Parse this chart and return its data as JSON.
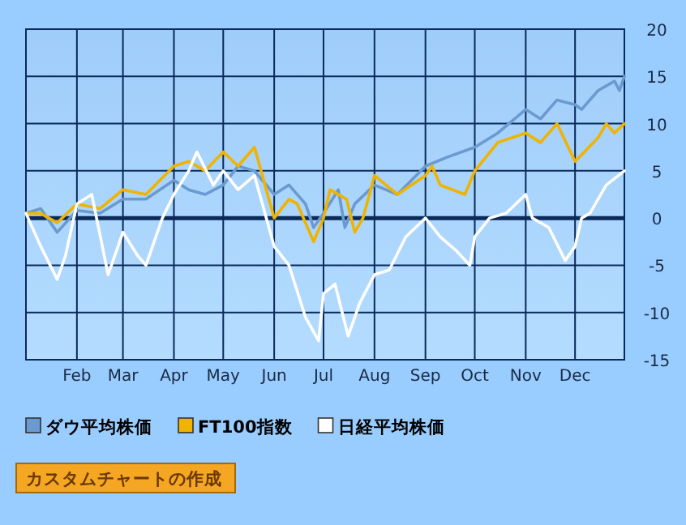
{
  "chart_data": {
    "type": "line",
    "xlim": [
      "--01-01",
      "--12-31"
    ],
    "xticks": [
      {
        "value": "--02-01",
        "label": "Feb"
      },
      {
        "value": "--03-01",
        "label": "Mar"
      },
      {
        "value": "--04-01",
        "label": "Apr"
      },
      {
        "value": "--05-01",
        "label": "May"
      },
      {
        "value": "--06-01",
        "label": "Jun"
      },
      {
        "value": "--07-01",
        "label": "Jul"
      },
      {
        "value": "--08-01",
        "label": "Aug"
      },
      {
        "value": "--09-01",
        "label": "Sep"
      },
      {
        "value": "--10-01",
        "label": "Oct"
      },
      {
        "value": "--11-01",
        "label": "Nov"
      },
      {
        "value": "--12-01",
        "label": "Dec"
      }
    ],
    "ylim": [
      -15,
      20
    ],
    "yticks": [
      -15,
      -10,
      -5,
      0,
      5,
      10,
      15,
      20
    ],
    "ref_lines": [
      {
        "axis": "y",
        "value": 0,
        "color": "#0a2a5a"
      }
    ],
    "grid": true,
    "legend": "bottom left",
    "annotations": [
      "カスタムチャートの作成"
    ],
    "series": [
      {
        "name": "ダウ平均株価",
        "color": "#6a9ad0",
        "x": [
          "--01-01",
          "--01-10",
          "--01-20",
          "--02-01",
          "--02-15",
          "--03-01",
          "--03-15",
          "--04-01",
          "--04-10",
          "--04-20",
          "--05-01",
          "--05-10",
          "--05-20",
          "--06-01",
          "--06-10",
          "--06-20",
          "--06-25",
          "--07-01",
          "--07-10",
          "--07-14",
          "--07-20",
          "--08-01",
          "--08-15",
          "--09-01",
          "--09-15",
          "--10-01",
          "--10-15",
          "--11-01",
          "--11-10",
          "--11-20",
          "--12-01",
          "--12-05",
          "--12-15",
          "--12-25",
          "--12-28",
          "--12-31"
        ],
        "values": [
          0.5,
          1.0,
          -1.5,
          0.8,
          0.5,
          2.0,
          2.0,
          4.0,
          3.0,
          2.5,
          3.5,
          5.5,
          5.0,
          2.5,
          3.5,
          1.5,
          -1.0,
          0.5,
          3.0,
          -1.0,
          1.5,
          3.5,
          2.5,
          5.5,
          6.5,
          7.5,
          9.0,
          11.5,
          10.5,
          12.5,
          12.0,
          11.5,
          13.5,
          14.5,
          13.5,
          15.0
        ]
      },
      {
        "name": "FT100指数",
        "color": "#f0b400",
        "x": [
          "--01-01",
          "--01-10",
          "--01-20",
          "--02-01",
          "--02-15",
          "--03-01",
          "--03-15",
          "--04-01",
          "--04-10",
          "--04-20",
          "--05-01",
          "--05-10",
          "--05-20",
          "--06-01",
          "--06-10",
          "--06-15",
          "--06-25",
          "--07-01",
          "--07-05",
          "--07-15",
          "--07-20",
          "--07-25",
          "--08-01",
          "--08-15",
          "--09-01",
          "--09-05",
          "--09-10",
          "--09-25",
          "--10-01",
          "--10-15",
          "--11-01",
          "--11-10",
          "--11-20",
          "--12-01",
          "--12-15",
          "--12-20",
          "--12-25",
          "--12-31"
        ],
        "values": [
          0.5,
          0.5,
          -0.5,
          1.5,
          1.0,
          3.0,
          2.5,
          5.5,
          6.0,
          5.0,
          7.0,
          5.5,
          7.5,
          0.0,
          2.0,
          1.5,
          -2.5,
          0.0,
          3.0,
          2.0,
          -1.5,
          0.0,
          4.5,
          2.5,
          4.5,
          5.5,
          3.5,
          2.5,
          5.0,
          8.0,
          9.0,
          8.0,
          10.0,
          6.0,
          8.5,
          10.0,
          9.0,
          10.0
        ]
      },
      {
        "name": "日経平均株価",
        "color": "#ffffff",
        "x": [
          "--01-01",
          "--01-10",
          "--01-20",
          "--01-25",
          "--02-01",
          "--02-10",
          "--02-20",
          "--03-01",
          "--03-10",
          "--03-15",
          "--03-25",
          "--04-01",
          "--04-10",
          "--04-15",
          "--04-25",
          "--05-01",
          "--05-10",
          "--05-20",
          "--06-01",
          "--06-10",
          "--06-20",
          "--06-28",
          "--07-01",
          "--07-08",
          "--07-16",
          "--07-23",
          "--08-01",
          "--08-10",
          "--08-20",
          "--09-01",
          "--09-10",
          "--09-20",
          "--09-28",
          "--10-01",
          "--10-10",
          "--10-20",
          "--11-01",
          "--11-05",
          "--11-15",
          "--11-25",
          "--12-01",
          "--12-05",
          "--12-10",
          "--12-20",
          "--12-31"
        ],
        "values": [
          0.5,
          -3.0,
          -6.5,
          -4.0,
          1.5,
          2.5,
          -6.0,
          -1.5,
          -4.0,
          -5.0,
          0.0,
          2.5,
          5.0,
          7.0,
          3.5,
          5.0,
          3.0,
          4.5,
          -3.0,
          -5.0,
          -10.5,
          -13.0,
          -8.0,
          -7.0,
          -12.5,
          -9.0,
          -6.0,
          -5.5,
          -2.0,
          0.0,
          -2.0,
          -3.5,
          -5.0,
          -2.0,
          0.0,
          0.5,
          2.5,
          0.0,
          -1.0,
          -4.5,
          -3.0,
          0.0,
          0.5,
          3.5,
          5.0
        ]
      }
    ]
  }
}
